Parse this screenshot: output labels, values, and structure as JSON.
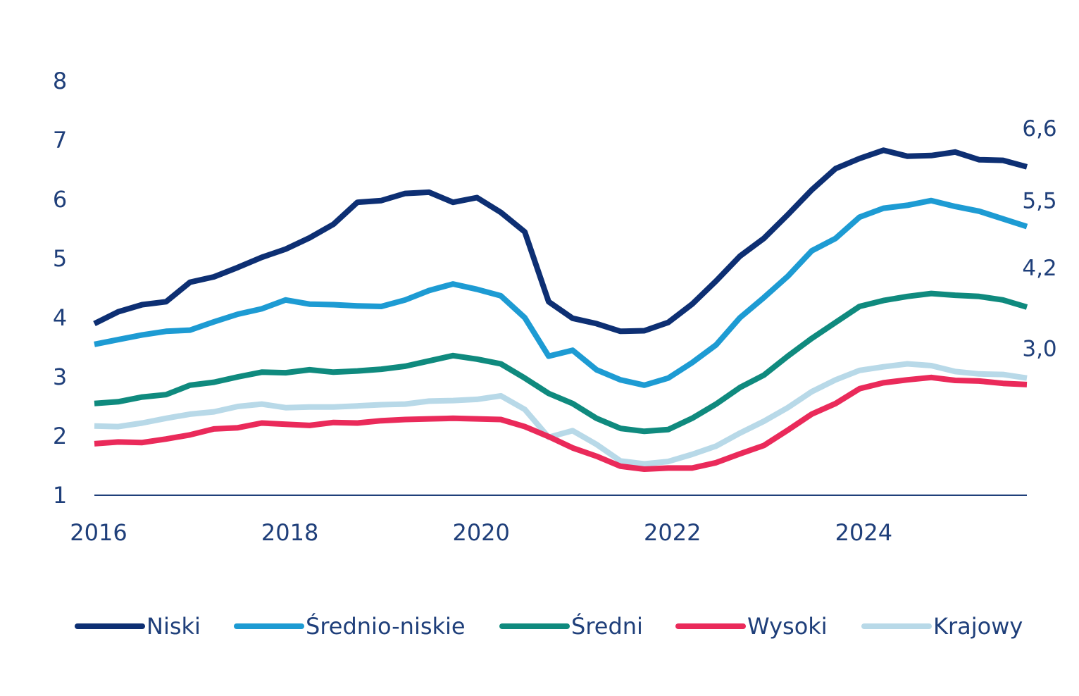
{
  "chart_data": {
    "type": "line",
    "title": "",
    "xlabel": "",
    "ylabel": "",
    "ylim": [
      1,
      8
    ],
    "y_ticks": [
      "1",
      "2",
      "3",
      "4",
      "5",
      "6",
      "7",
      "8"
    ],
    "x_ticks": [
      "2016",
      "2018",
      "2020",
      "2022",
      "2024"
    ],
    "grid": false,
    "legend_position": "bottom",
    "x": [
      2016.0,
      2016.25,
      2016.5,
      2016.75,
      2017.0,
      2017.25,
      2017.5,
      2017.75,
      2018.0,
      2018.25,
      2018.5,
      2018.75,
      2019.0,
      2019.25,
      2019.5,
      2019.75,
      2020.0,
      2020.25,
      2020.5,
      2020.75,
      2021.0,
      2021.25,
      2021.5,
      2021.75,
      2022.0,
      2022.25,
      2022.5,
      2022.75,
      2023.0,
      2023.25,
      2023.5,
      2023.75,
      2024.0,
      2024.25,
      2024.5,
      2024.75,
      2025.0,
      2025.25,
      2025.5,
      2025.75
    ],
    "series": [
      {
        "name": "Niski",
        "color": "#0d2f73",
        "end_label": "6,6",
        "values": [
          3.9,
          4.1,
          4.22,
          4.27,
          4.6,
          4.69,
          4.85,
          5.02,
          5.16,
          5.35,
          5.58,
          5.95,
          5.98,
          6.1,
          6.12,
          5.95,
          6.03,
          5.78,
          5.45,
          4.27,
          3.99,
          3.9,
          3.77,
          3.78,
          3.92,
          4.23,
          4.62,
          5.04,
          5.34,
          5.74,
          6.16,
          6.52,
          6.69,
          6.83,
          6.73,
          6.74,
          6.8,
          6.67,
          6.66,
          6.55
        ]
      },
      {
        "name": "Średnio-niskie",
        "color": "#1d9bd3",
        "end_label": "5,5",
        "values": [
          3.55,
          3.63,
          3.71,
          3.77,
          3.79,
          3.93,
          4.06,
          4.15,
          4.3,
          4.23,
          4.22,
          4.2,
          4.19,
          4.3,
          4.46,
          4.57,
          4.48,
          4.37,
          4.0,
          3.35,
          3.45,
          3.12,
          2.95,
          2.86,
          2.98,
          3.24,
          3.54,
          4.0,
          4.34,
          4.7,
          5.13,
          5.34,
          5.7,
          5.85,
          5.9,
          5.98,
          5.88,
          5.8,
          5.67,
          5.54
        ]
      },
      {
        "name": "Średni",
        "color": "#0f8a7e",
        "end_label": "4,2",
        "values": [
          2.55,
          2.58,
          2.66,
          2.7,
          2.86,
          2.91,
          3.0,
          3.08,
          3.07,
          3.12,
          3.08,
          3.1,
          3.13,
          3.18,
          3.27,
          3.36,
          3.3,
          3.22,
          2.98,
          2.72,
          2.55,
          2.3,
          2.13,
          2.08,
          2.11,
          2.3,
          2.54,
          2.82,
          3.03,
          3.35,
          3.65,
          3.92,
          4.19,
          4.29,
          4.36,
          4.41,
          4.38,
          4.36,
          4.3,
          4.18
        ]
      },
      {
        "name": "Wysoki",
        "color": "#ea2a5a",
        "end_label": "",
        "values": [
          1.87,
          1.9,
          1.89,
          1.95,
          2.02,
          2.12,
          2.14,
          2.22,
          2.2,
          2.18,
          2.23,
          2.22,
          2.26,
          2.28,
          2.29,
          2.3,
          2.29,
          2.28,
          2.16,
          1.99,
          1.8,
          1.66,
          1.49,
          1.44,
          1.46,
          1.46,
          1.55,
          1.7,
          1.84,
          2.1,
          2.37,
          2.55,
          2.8,
          2.9,
          2.95,
          2.99,
          2.94,
          2.93,
          2.89,
          2.87
        ]
      },
      {
        "name": "Krajowy",
        "color": "#b8d9e8",
        "end_label": "3,0",
        "values": [
          2.17,
          2.16,
          2.22,
          2.3,
          2.37,
          2.41,
          2.5,
          2.54,
          2.48,
          2.49,
          2.49,
          2.51,
          2.53,
          2.54,
          2.59,
          2.6,
          2.62,
          2.68,
          2.45,
          1.98,
          2.09,
          1.86,
          1.58,
          1.53,
          1.57,
          1.69,
          1.83,
          2.05,
          2.25,
          2.48,
          2.75,
          2.95,
          3.11,
          3.17,
          3.22,
          3.19,
          3.09,
          3.05,
          3.04,
          2.98
        ]
      }
    ]
  }
}
